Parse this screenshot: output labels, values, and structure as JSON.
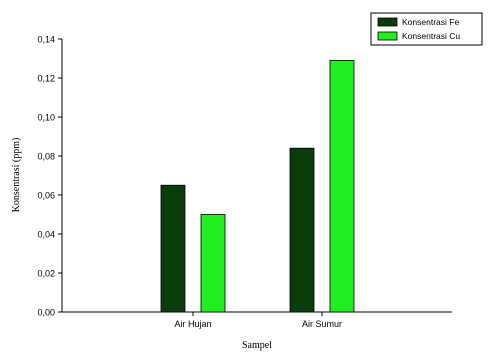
{
  "chart_data": {
    "type": "bar",
    "categories": [
      "Air Hujan",
      "Air Sumur"
    ],
    "series": [
      {
        "name": "Konsentrasi Fe",
        "values": [
          0.065,
          0.084
        ],
        "color": "#0b3d0b"
      },
      {
        "name": "Konsentrasi Cu",
        "values": [
          0.05,
          0.129
        ],
        "color": "#22ee22"
      }
    ],
    "xlabel": "Sampel",
    "ylabel": "Konsentrasi (ppm)",
    "ylim": [
      0,
      0.14
    ],
    "yticks": [
      "0,00",
      "0,02",
      "0,04",
      "0,06",
      "0,08",
      "0,10",
      "0,12",
      "0,14"
    ],
    "grid": false,
    "legend_position": "top-right"
  }
}
